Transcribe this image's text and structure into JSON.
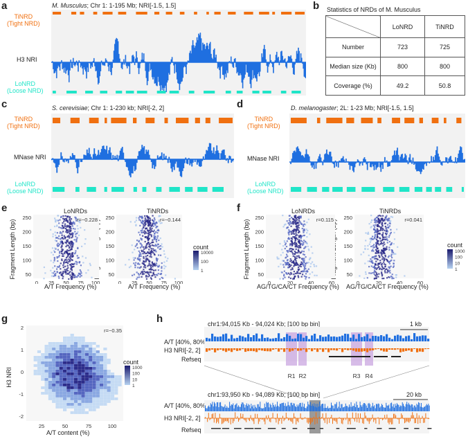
{
  "colors": {
    "orange": "#f07010",
    "blue": "#1f6fe0",
    "teal": "#20e5c8",
    "density_dark": "#1b1b6e",
    "density_light": "#b6d2f0"
  },
  "panel_labels": {
    "a": "a",
    "b": "b",
    "c": "c",
    "d": "d",
    "e": "e",
    "f": "f",
    "g": "g",
    "h": "h"
  },
  "panel_a": {
    "title_species": "M. Musculus",
    "title_rest": "; Chr 1: 1-195 Mb; NRI[-1.5, 1.5]",
    "tinrd_1": "TiNRD",
    "tinrd_2": "(Tight NRD)",
    "nri": "H3 NRI",
    "lonrd_1": "LoNRD",
    "lonrd_2": "(Loose NRD)"
  },
  "panel_b": {
    "title": "Statistics of NRDs of M. Musculus",
    "col1": "LoNRD",
    "col2": "TiNRD",
    "rows": [
      {
        "label": "Number",
        "lonrd": "723",
        "tinrd": "725"
      },
      {
        "label": "Median size (Kb)",
        "lonrd": "800",
        "tinrd": "800"
      },
      {
        "label": "Coverage (%)",
        "lonrd": "49.2",
        "tinrd": "50.8"
      }
    ]
  },
  "panel_c": {
    "title_species": "S. cerevisiae",
    "title_rest": "; Chr 1: 1-230 kb; NRI[-2, 2]",
    "tinrd_1": "TiNRD",
    "tinrd_2": "(Tight NRD)",
    "nri": "MNase NRI",
    "lonrd_1": "LoNRD",
    "lonrd_2": "(Loose NRD)"
  },
  "panel_d": {
    "title_species": "D. melanogaster",
    "title_rest": "; 2L: 1-23 Mb; NRI[-1.5, 1.5]",
    "tinrd_1": "TiNRD",
    "tinrd_2": "(Tight NRD)",
    "nri": "MNase NRI",
    "lonrd_1": "LoNRD",
    "lonrd_2": "(Loose NRD)"
  },
  "panel_e": {
    "ylabel": "Fragment Length (bp)",
    "xlabel": "A/T Frequency (%)",
    "legend_title": "count",
    "legend_ticks": [
      "10000",
      "100",
      "1"
    ],
    "sub1_title": "LoNRDs",
    "sub1_r": "r=−0.228",
    "sub2_title": "TiNRDs",
    "sub2_r": "r=−0.144"
  },
  "panel_f": {
    "ylabel": "Fragment Length (bp)",
    "xlabel": "AG/TG/CA/CT Frequency (%)",
    "legend_title": "count",
    "legend_ticks": [
      "1000",
      "100",
      "10",
      "1"
    ],
    "sub1_title": "LoNRDs",
    "sub1_r": "r=0.115",
    "sub2_title": "TiNRDs",
    "sub2_r": "r=0.041"
  },
  "panel_g": {
    "ylabel": "H3 NRI",
    "xlabel": "A/T content (%)",
    "r": "r=−0.35",
    "legend_title": "count",
    "legend_ticks": [
      "1000",
      "100",
      "10",
      "1"
    ]
  },
  "panel_h": {
    "top_title": "chr1:94,015 Kb - 94,024 Kb; [100 bp bin]",
    "top_scale": "1 kb",
    "bottom_title": "chr1:93,950 Kb - 94,089 Kb; [100 bp bin]",
    "bottom_scale": "20 kb",
    "track_at": "A/T [40%, 80%]",
    "track_nri": "H3 NRI[-2, 2]",
    "track_refseq": "Refseq",
    "regions": [
      "R1",
      "R2",
      "R3",
      "R4"
    ]
  },
  "chart_data": [
    {
      "type": "heatmap",
      "panel": "e",
      "subplots": [
        "LoNRDs",
        "TiNRDs"
      ],
      "xlabel": "A/T Frequency (%)",
      "ylabel": "Fragment Length (bp)",
      "x_ticks": [
        0,
        25,
        50,
        75,
        100
      ],
      "y_ticks": [
        50,
        100,
        150,
        200,
        250
      ],
      "r": [
        -0.228,
        -0.144
      ],
      "legend": "count",
      "legend_ticks": [
        10000,
        100,
        1
      ]
    },
    {
      "type": "heatmap",
      "panel": "f",
      "subplots": [
        "LoNRDs",
        "TiNRDs"
      ],
      "xlabel": "AG/TG/CA/CT Frequency (%)",
      "ylabel": "Fragment Length (bp)",
      "x_ticks": [
        0,
        20,
        40,
        60
      ],
      "y_ticks": [
        50,
        100,
        150,
        200,
        250
      ],
      "r": [
        0.115,
        0.041
      ],
      "legend": "count",
      "legend_ticks": [
        1000,
        100,
        10,
        1
      ]
    },
    {
      "type": "heatmap",
      "panel": "g",
      "xlabel": "A/T content (%)",
      "ylabel": "H3 NRI",
      "x_ticks": [
        25,
        50,
        75,
        100
      ],
      "y_ticks": [
        -2,
        -1,
        0,
        1,
        2
      ],
      "r": -0.35,
      "legend": "count",
      "legend_ticks": [
        1000,
        100,
        10,
        1
      ]
    }
  ]
}
